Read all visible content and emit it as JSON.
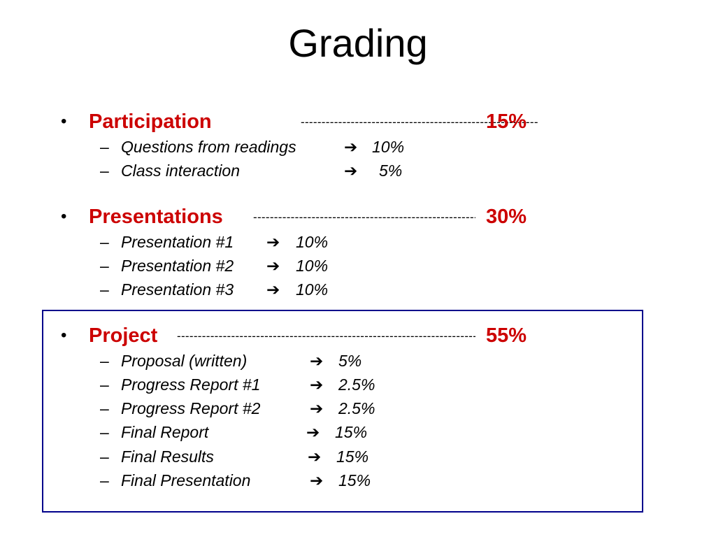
{
  "slide": {
    "title": "Grading",
    "accent_color": "#cc0000",
    "box_color": "#00008b",
    "bullet_glyph": "•",
    "dash_glyph": "–",
    "arrow_glyph": "➔",
    "sections": [
      {
        "label": "Participation",
        "leader": "---------------------------------------------------------------------------------",
        "percent": "15%",
        "items": [
          {
            "label": "Questions from readings",
            "value": "10%"
          },
          {
            "label": "Class interaction",
            "value": "5%"
          }
        ]
      },
      {
        "label": "Presentations",
        "leader": "---------------------------------------------------------------------------------",
        "percent": "30%",
        "items": [
          {
            "label": "Presentation #1",
            "value": "10%"
          },
          {
            "label": "Presentation #2",
            "value": "10%"
          },
          {
            "label": "Presentation #3",
            "value": "10%"
          }
        ]
      },
      {
        "label": "Project",
        "leader": "---------------------------------------------------------------------------------------------------------",
        "percent": "55%",
        "items": [
          {
            "label": "Proposal (written)",
            "value": "5%"
          },
          {
            "label": "Progress Report #1",
            "value": "2.5%"
          },
          {
            "label": "Progress Report #2",
            "value": "2.5%"
          },
          {
            "label": "Final Report",
            "value": "15%"
          },
          {
            "label": "Final Results",
            "value": "15%"
          },
          {
            "label": "Final Presentation",
            "value": "15%"
          }
        ]
      }
    ]
  }
}
